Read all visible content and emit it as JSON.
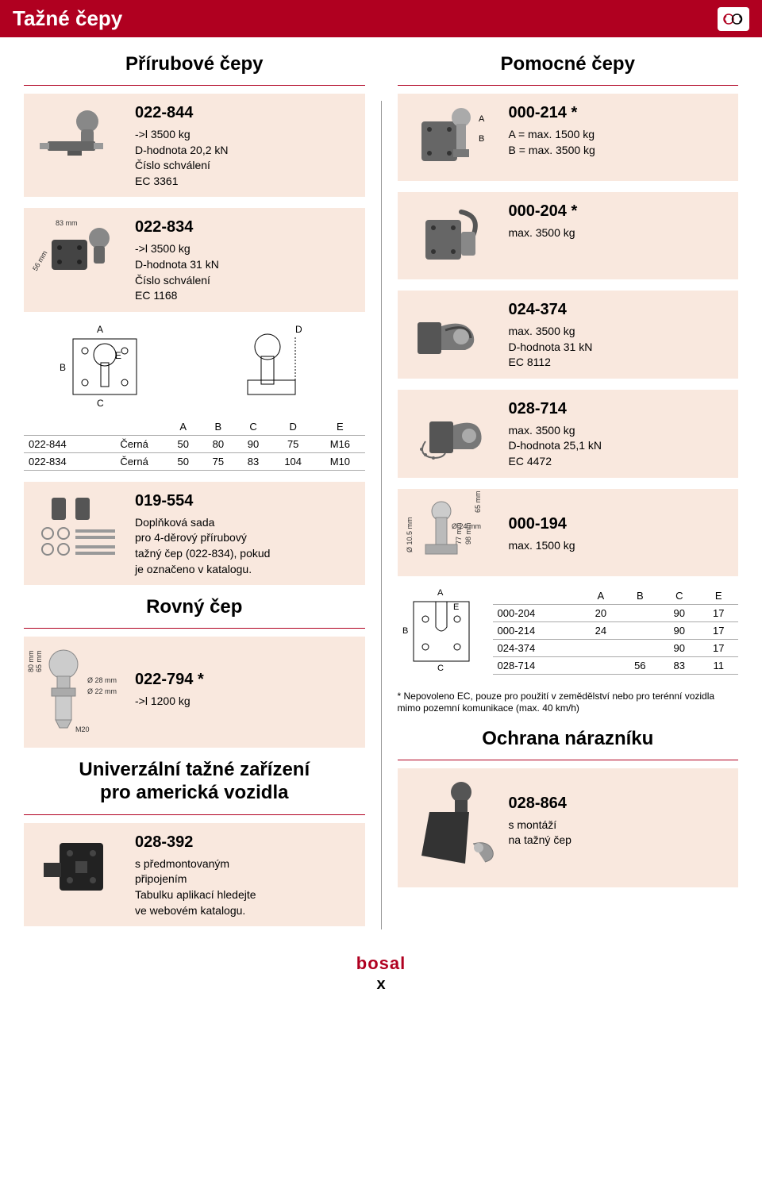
{
  "header": {
    "title": "Tažné čepy"
  },
  "left": {
    "section1_title": "Přírubové čepy",
    "item1": {
      "code": "022-844",
      "l1": "->l 3500 kg",
      "l2": "D-hodnota 20,2 kN",
      "l3": "Číslo schválení",
      "l4": "EC 3361"
    },
    "item2": {
      "code": "022-834",
      "l1": "->l 3500 kg",
      "l2": "D-hodnota 31 kN",
      "l3": "Číslo schválení",
      "l4": "EC 1168",
      "dim1": "83 mm",
      "dim2": "56 mm"
    },
    "table1": {
      "headers": [
        "",
        "",
        "A",
        "B",
        "C",
        "D",
        "E"
      ],
      "rows": [
        [
          "022-844",
          "Černá",
          "50",
          "80",
          "90",
          "75",
          "M16"
        ],
        [
          "022-834",
          "Černá",
          "50",
          "75",
          "83",
          "104",
          "M10"
        ]
      ]
    },
    "item3": {
      "code": "019-554",
      "l1": "Doplňková sada",
      "l2": "pro 4-děrový přírubový",
      "l3": "tažný čep (022-834), pokud",
      "l4": "je označeno v katalogu."
    },
    "section2_title": "Rovný čep",
    "item4": {
      "code": "022-794 *",
      "l1": "->l 1200 kg",
      "dim1": "80 mm",
      "dim2": "65 mm",
      "dim3": "Ø 28 mm",
      "dim4": "Ø 22 mm",
      "dim5": "M20"
    },
    "section3_title_l1": "Univerzální tažné zařízení",
    "section3_title_l2": "pro americká vozidla",
    "item5": {
      "code": "028-392",
      "l1": "s předmontovaným",
      "l2": "připojením",
      "l3": "Tabulku aplikací hledejte",
      "l4": "ve webovém katalogu."
    }
  },
  "right": {
    "section1_title": "Pomocné čepy",
    "item1": {
      "code": "000-214 *",
      "l1": "A = max. 1500 kg",
      "l2": "B = max. 3500 kg"
    },
    "item2": {
      "code": "000-204 *",
      "l1": "max. 3500 kg"
    },
    "item3": {
      "code": "024-374",
      "l1": "max. 3500 kg",
      "l2": "D-hodnota 31 kN",
      "l3": "EC 8112"
    },
    "item4": {
      "code": "028-714",
      "l1": "max. 3500 kg",
      "l2": "D-hodnota 25,1 kN",
      "l3": "EC 4472"
    },
    "item5": {
      "code": "000-194",
      "l1": "max. 1500 kg",
      "dim1": "Ø 24 mm",
      "dim2": "Ø 10.5 mm",
      "dim3": "77 mm",
      "dim4": "98 mm",
      "dim5": "65 mm"
    },
    "table2": {
      "headers": [
        "",
        "A",
        "B",
        "C",
        "E"
      ],
      "rows": [
        [
          "000-204",
          "20",
          "",
          "90",
          "17"
        ],
        [
          "000-214",
          "24",
          "",
          "90",
          "17"
        ],
        [
          "024-374",
          "",
          "",
          "90",
          "17"
        ],
        [
          "028-714",
          "",
          "56",
          "83",
          "11"
        ]
      ]
    },
    "footnote": "* Nepovoleno EC, pouze pro použití  v zemědělství nebo pro terénní vozidla mimo pozemní komunikace (max. 40 km/h)",
    "section2_title": "Ochrana nárazníku",
    "item6": {
      "code": "028-864",
      "l1": "s montáží",
      "l2": "na tažný čep"
    }
  },
  "footer": {
    "brand": "bosal",
    "page": "x"
  },
  "colors": {
    "accent": "#b00020",
    "item_bg": "#f9e8de"
  }
}
